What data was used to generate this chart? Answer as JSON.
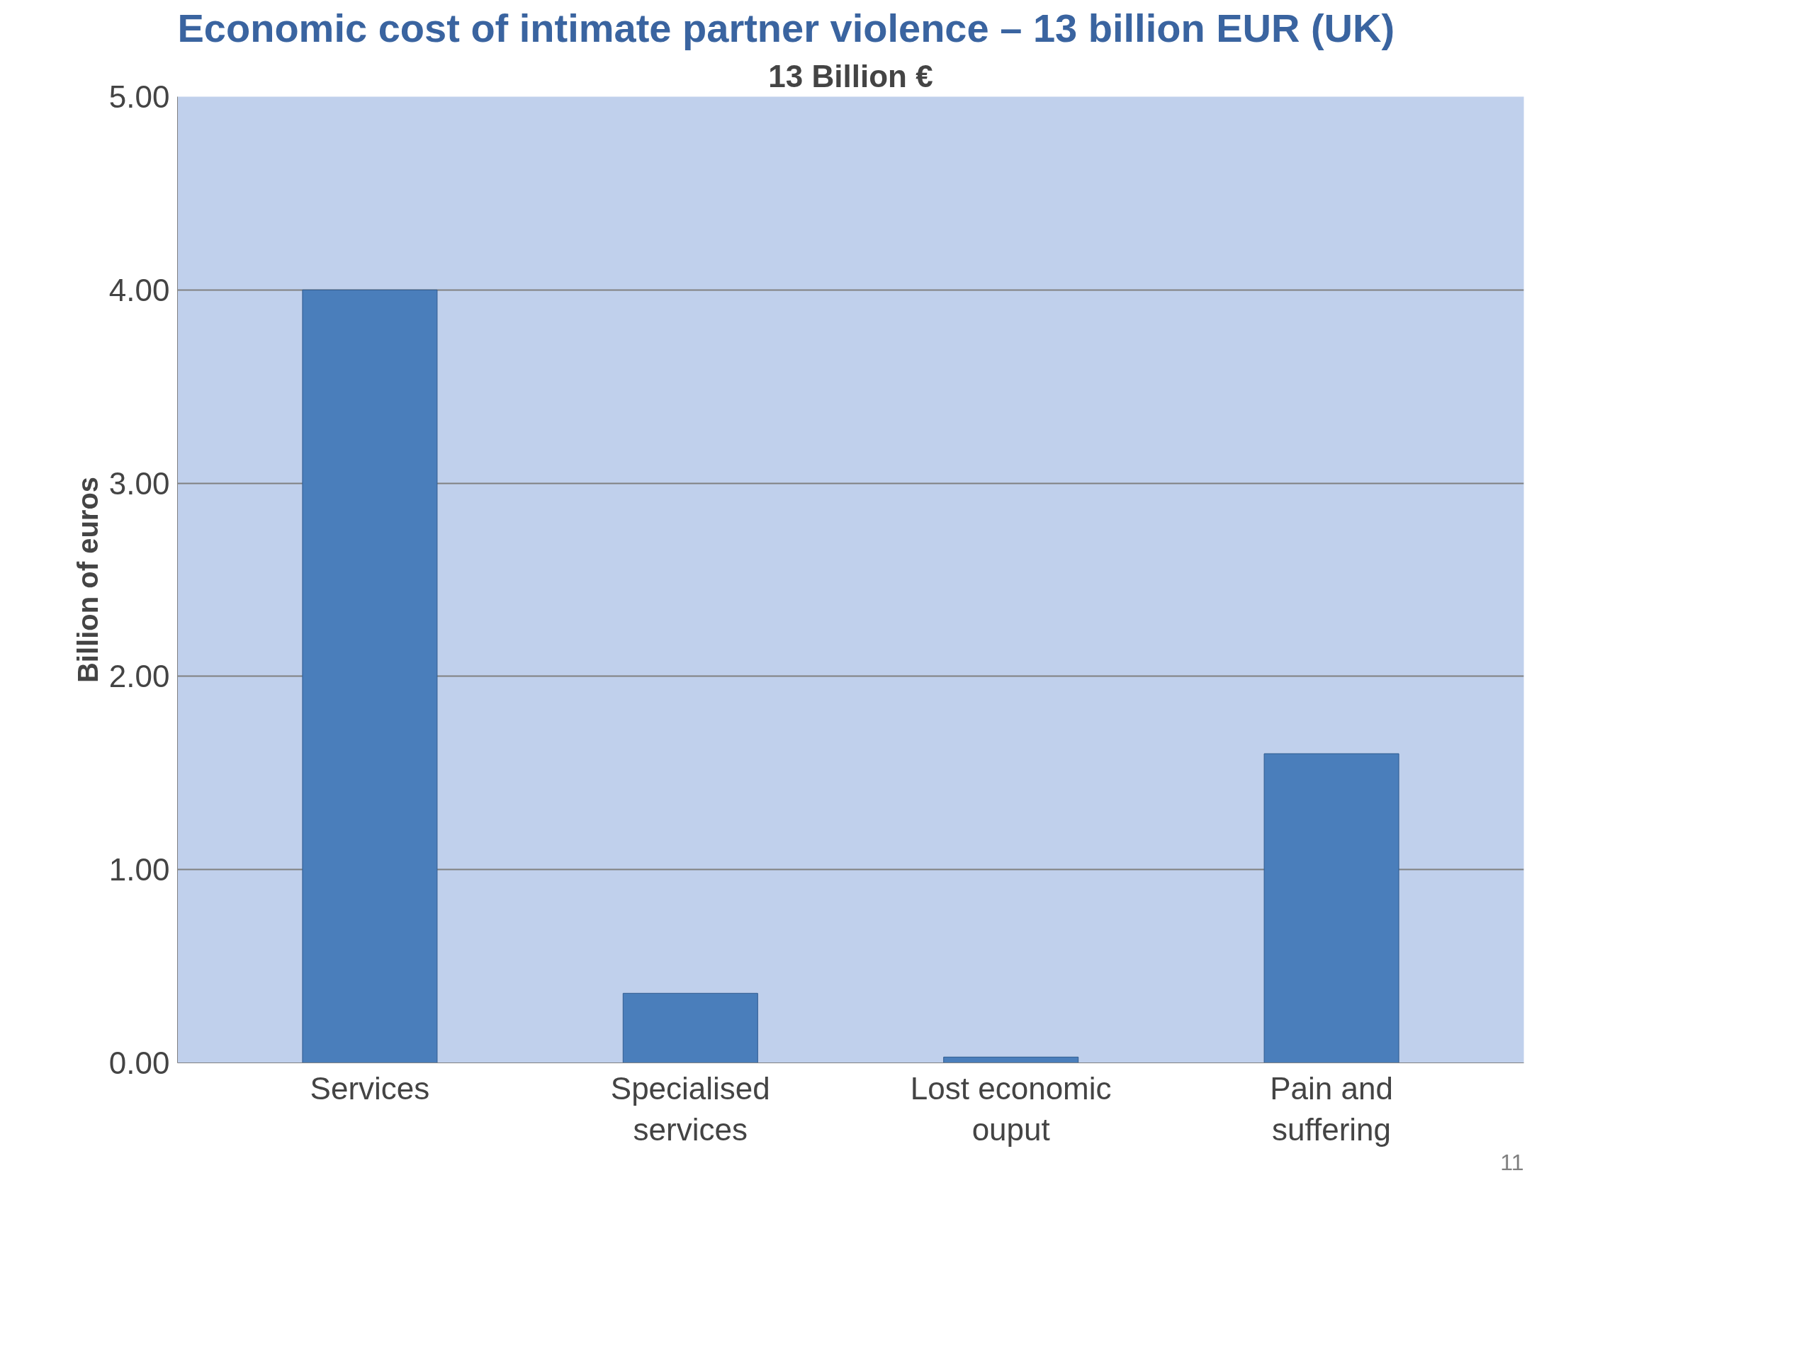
{
  "chart_data": {
    "type": "bar",
    "title": "Economic cost of intimate partner violence – 13 billion EUR (UK)",
    "subtitle": "13 Billion €",
    "ylabel": "Billion of euros",
    "categories": [
      "Services",
      "Specialised services",
      "Lost economic ouput",
      "Pain and suffering"
    ],
    "values": [
      4.0,
      0.36,
      0.03,
      1.6
    ],
    "color": "#4a7ebb",
    "ylim": [
      0,
      5
    ],
    "yticks": [
      {
        "value": 0,
        "label": "0.00"
      },
      {
        "value": 1,
        "label": "1.00"
      },
      {
        "value": 2,
        "label": "2.00"
      },
      {
        "value": 3,
        "label": "3.00"
      },
      {
        "value": 4,
        "label": "4.00"
      },
      {
        "value": 5,
        "label": "5.00"
      }
    ],
    "grid": "y",
    "annotations": [
      "11"
    ]
  }
}
